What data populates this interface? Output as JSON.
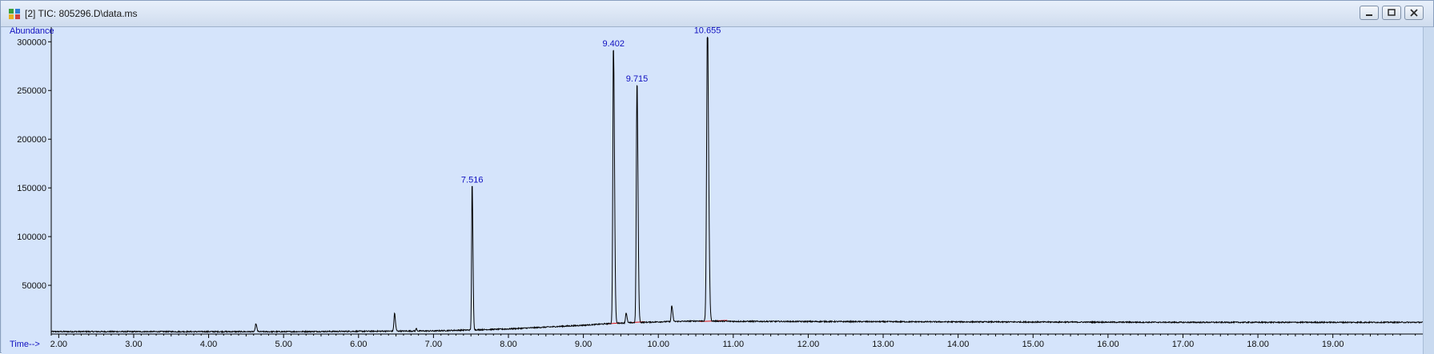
{
  "window": {
    "title": "[2] TIC: 805296.D\\data.ms",
    "icon": "chromatogram-app-icon",
    "controls": [
      "minimize-icon",
      "restore-icon",
      "close-icon"
    ]
  },
  "colors": {
    "plot_background": "#d5e4fb",
    "trace": "#000000",
    "baseline": "#e01010",
    "label": "#1010c0"
  },
  "chart_data": {
    "type": "line",
    "ylabel": "Abundance",
    "xlabel": "Time-->",
    "xlim": [
      1.9,
      20.2
    ],
    "ylim": [
      0,
      315000
    ],
    "x_ticks": [
      2.0,
      3.0,
      4.0,
      5.0,
      6.0,
      7.0,
      8.0,
      9.0,
      10.0,
      11.0,
      12.0,
      13.0,
      14.0,
      15.0,
      16.0,
      17.0,
      18.0,
      19.0
    ],
    "x_tick_labels": [
      "2.00",
      "3.00",
      "4.00",
      "5.00",
      "6.00",
      "7.00",
      "8.00",
      "9.00",
      "10.00",
      "11.00",
      "12.00",
      "13.00",
      "14.00",
      "15.00",
      "16.00",
      "17.00",
      "18.00",
      "19.00"
    ],
    "y_ticks": [
      50000,
      100000,
      150000,
      200000,
      250000,
      300000
    ],
    "y_tick_labels": [
      "50000",
      "100000",
      "150000",
      "200000",
      "250000",
      "300000"
    ],
    "baseline": {
      "x": [
        1.9,
        5.0,
        7.0,
        8.0,
        9.0,
        9.4,
        10.0,
        10.6,
        11.0,
        14.0,
        17.0,
        20.2
      ],
      "y": [
        2500,
        2400,
        3200,
        5200,
        9000,
        11000,
        12500,
        13500,
        13000,
        12500,
        12000,
        12000
      ]
    },
    "peaks": [
      {
        "rt": 4.63,
        "height": 8000,
        "width": 0.008
      },
      {
        "rt": 6.48,
        "height": 18000,
        "width": 0.008
      },
      {
        "rt": 6.77,
        "height": 2500,
        "width": 0.006
      },
      {
        "rt": 7.516,
        "height": 148000,
        "width": 0.007
      },
      {
        "rt": 9.402,
        "height": 281000,
        "width": 0.009
      },
      {
        "rt": 9.57,
        "height": 10000,
        "width": 0.008
      },
      {
        "rt": 9.715,
        "height": 244000,
        "width": 0.009
      },
      {
        "rt": 10.18,
        "height": 16000,
        "width": 0.008
      },
      {
        "rt": 10.655,
        "height": 292000,
        "width": 0.011
      }
    ],
    "peak_labels": [
      {
        "rt": 7.516,
        "label": "7.516"
      },
      {
        "rt": 9.402,
        "label": "9.402"
      },
      {
        "rt": 9.715,
        "label": "9.715"
      },
      {
        "rt": 10.655,
        "label": "10.655"
      }
    ],
    "integration_baselines": [
      {
        "x": [
          9.32,
          9.5
        ],
        "y": [
          10500,
          11500
        ]
      },
      {
        "x": [
          9.64,
          9.82
        ],
        "y": [
          11800,
          12600
        ]
      },
      {
        "x": [
          10.55,
          10.92
        ],
        "y": [
          12800,
          14000
        ]
      }
    ],
    "grid": false,
    "legend": "none"
  }
}
